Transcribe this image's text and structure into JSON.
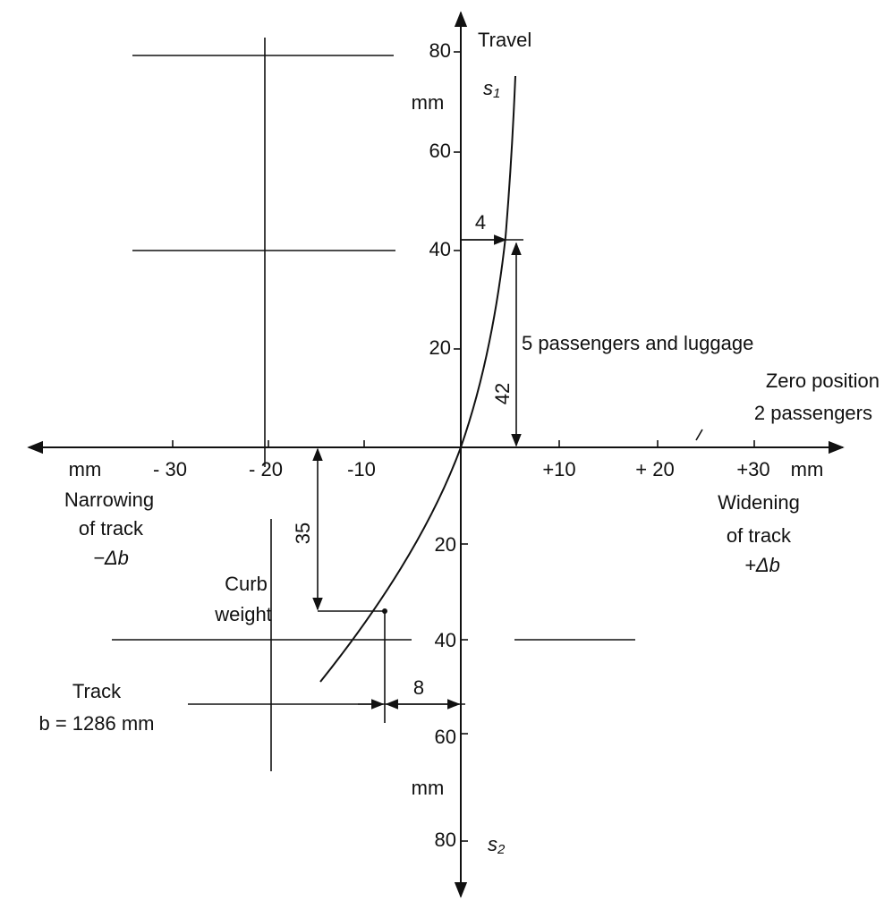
{
  "axes": {
    "y_top": {
      "title": "Travel",
      "symbol": "s",
      "subscript": "1",
      "unit": "mm",
      "ticks": [
        "80",
        "60",
        "40",
        "20"
      ]
    },
    "y_bottom": {
      "symbol": "s",
      "subscript": "2",
      "unit": "mm",
      "ticks": [
        "20",
        "40",
        "60",
        "80"
      ]
    },
    "x": {
      "unit_left": "mm",
      "unit_right": "mm",
      "ticks": [
        "- 30",
        "- 20",
        "-10",
        "+10",
        "+ 20",
        "+30"
      ]
    }
  },
  "annotations": {
    "dim_4": "4",
    "dim_42": "42",
    "dim_35": "35",
    "dim_8": "8",
    "load": "5 passengers and luggage",
    "zero": [
      "Zero position",
      "2 passengers"
    ],
    "narrowing": [
      "Narrowing",
      "of track",
      "−Δb"
    ],
    "widening": [
      "Widening",
      "of track",
      "+Δb"
    ],
    "curb": [
      "Curb",
      "weight"
    ],
    "track": [
      "Track",
      "b = 1286 mm"
    ]
  }
}
